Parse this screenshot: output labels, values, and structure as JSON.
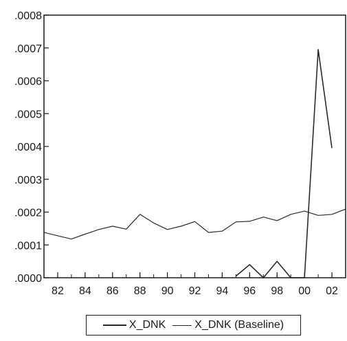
{
  "chart_data": {
    "type": "line",
    "title": "",
    "xlabel": "",
    "ylabel": "",
    "x_tick_labels": [
      "82",
      "84",
      "86",
      "88",
      "90",
      "92",
      "94",
      "96",
      "98",
      "00",
      "02"
    ],
    "y_tick_labels": [
      ".0000",
      ".0001",
      ".0002",
      ".0003",
      ".0004",
      ".0005",
      ".0006",
      ".0007",
      ".0008"
    ],
    "xlim": [
      1981,
      2003
    ],
    "ylim": [
      0,
      0.0008
    ],
    "grid": false,
    "legend_position": "bottom",
    "series": [
      {
        "name": "X_DNK",
        "x": [
          1995,
          1996,
          1997,
          1998,
          1999,
          2000,
          2001,
          2002
        ],
        "values": [
          5e-06,
          4e-05,
          0.0,
          5e-05,
          0.0,
          0.0,
          0.000695,
          0.000395
        ]
      },
      {
        "name": "X_DNK (Baseline)",
        "x": [
          1981,
          1982,
          1983,
          1984,
          1985,
          1986,
          1987,
          1988,
          1989,
          1990,
          1991,
          1992,
          1993,
          1994,
          1995,
          1996,
          1997,
          1998,
          1999,
          2000,
          2001,
          2002,
          2003
        ],
        "values": [
          0.000138,
          0.000128,
          0.000118,
          0.000133,
          0.000147,
          0.000157,
          0.000148,
          0.000193,
          0.000167,
          0.000147,
          0.000157,
          0.000171,
          0.000138,
          0.000142,
          0.00017,
          0.000172,
          0.000185,
          0.000174,
          0.000193,
          0.000203,
          0.00019,
          0.000193,
          0.000209
        ]
      }
    ]
  },
  "colors": {
    "line": "#2a2a2a",
    "axis": "#1a1a1a",
    "background": "#ffffff"
  }
}
